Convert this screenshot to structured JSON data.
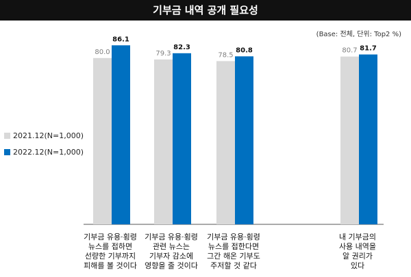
{
  "title": "기부금 내역 공개 필요성",
  "base_note": "(Base: 전체, 단위: Top2 %)",
  "colors": {
    "series_2021": "#d9d9d9",
    "series_2022": "#0070c0",
    "title_bg": "#111111",
    "axis": "#555555"
  },
  "chart_data": {
    "type": "bar",
    "categories": [
      "기부금 유용·횡령\n뉴스를 접하면\n선량한 기부까지\n피해를 볼 것이다",
      "기부금 유용·횡령\n관련 뉴스는\n기부자 감소에\n영향을 줄 것이다",
      "기부금 유용·횡령\n뉴스를 접한다면\n그간 해온 기부도\n주저할 것 같다",
      "내 기부금의\n사용 내역을\n알 권리가\n있다"
    ],
    "series": [
      {
        "name": "2021.12(N=1,000)",
        "values": [
          80.0,
          79.3,
          78.5,
          80.7
        ],
        "labels": [
          "80.0",
          "79.3",
          "78.5",
          "80.7"
        ]
      },
      {
        "name": "2022.12(N=1,000)",
        "values": [
          86.1,
          82.3,
          80.8,
          81.7
        ],
        "labels": [
          "86.1",
          "82.3",
          "80.8",
          "81.7"
        ]
      }
    ],
    "ylim": [
      0,
      100
    ],
    "legend_position": "left",
    "grid": false
  }
}
